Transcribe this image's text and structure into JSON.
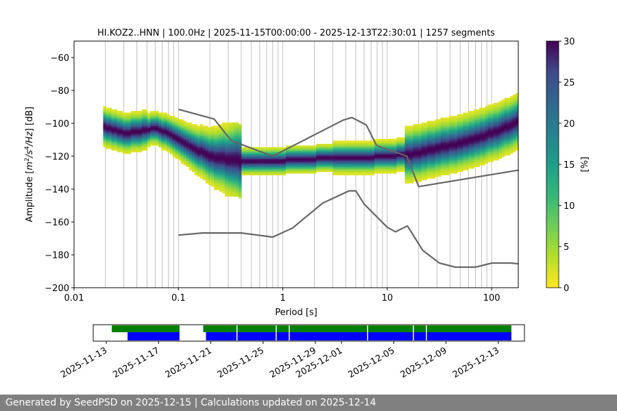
{
  "footer": {
    "text": "Generated by SeedPSD on 2025-12-15 | Calculations updated on 2025-12-14"
  },
  "chart_data": {
    "type": "heatmap",
    "title": "HI.KOZ2..HNN | 100.0Hz | 2025-11-15T00:00:00 - 2025-12-13T22:30:01 | 1257 segments",
    "xlabel": "Period [s]",
    "ylabel_parts": [
      "Amplitude [",
      "m",
      "2",
      "/",
      "s",
      "4",
      "/",
      "Hz",
      "] [dB]"
    ],
    "x_scale": "log",
    "xlim": [
      0.01,
      180
    ],
    "ylim": [
      -200,
      -50
    ],
    "x_ticks": [
      0.01,
      0.1,
      1,
      10,
      100
    ],
    "x_tick_labels": [
      "0.01",
      "0.1",
      "1",
      "10",
      "100"
    ],
    "y_ticks": [
      -200,
      -180,
      -160,
      -140,
      -120,
      -100,
      -80,
      -60
    ],
    "y_tick_labels": [
      "−200",
      "−180",
      "−160",
      "−140",
      "−120",
      "−100",
      "−80",
      "−60"
    ],
    "grid": "vertical at period bins",
    "grid_periods": [
      0.02,
      0.03,
      0.04,
      0.05,
      0.06,
      0.07,
      0.08,
      0.09,
      0.1,
      0.2,
      0.3,
      0.4,
      0.5,
      0.6,
      0.7,
      0.8,
      0.9,
      1,
      2,
      3,
      4,
      5,
      6,
      7,
      8,
      9,
      10,
      20,
      30,
      40,
      50,
      60,
      70,
      80,
      90,
      100
    ],
    "colorbar": {
      "label": "[%]",
      "range": [
        0,
        30
      ],
      "ticks": [
        0,
        5,
        10,
        15,
        20,
        25,
        30
      ],
      "colormap": "viridis_r"
    },
    "series": [
      {
        "role": "noise-model-high",
        "color": "#666666",
        "x": [
          0.1,
          0.22,
          0.32,
          0.8,
          3.8,
          4.6,
          6.3,
          7.9,
          15.4,
          20,
          180
        ],
        "y": [
          -91.5,
          -97.4,
          -110.5,
          -120,
          -98,
          -96.5,
          -101,
          -113.5,
          -120,
          -138.5,
          -128.5
        ]
      },
      {
        "role": "noise-model-low",
        "color": "#666666",
        "x": [
          0.1,
          0.17,
          0.4,
          0.8,
          1.24,
          2.4,
          4.3,
          5,
          6,
          10,
          12,
          15.6,
          21.9,
          31.6,
          45,
          70,
          101,
          154,
          180
        ],
        "y": [
          -168,
          -166.7,
          -166.7,
          -169.2,
          -163.7,
          -148.6,
          -141.1,
          -141.1,
          -149.1,
          -163.2,
          -166,
          -162.4,
          -177.3,
          -185,
          -187.5,
          -187.5,
          -185,
          -185,
          -185.5
        ]
      }
    ],
    "psd_mode": {
      "x": [
        0.019,
        0.025,
        0.03,
        0.04,
        0.06,
        0.08,
        0.1,
        0.15,
        0.2,
        0.3,
        0.5,
        0.8,
        1.5,
        3,
        6,
        10,
        15,
        20,
        30,
        50,
        80,
        120,
        180
      ],
      "y": [
        -102,
        -104,
        -106,
        -105,
        -103,
        -106,
        -110,
        -116,
        -120,
        -122,
        -123,
        -123,
        -122,
        -121,
        -121,
        -120,
        -119,
        -118,
        -115,
        -112,
        -108,
        -104,
        -99
      ]
    },
    "availability": {
      "x_ticks": [
        "2025-11-13",
        "2025-11-17",
        "2025-11-21",
        "2025-11-25",
        "2025-11-29",
        "2025-12-01",
        "2025-12-05",
        "2025-12-09",
        "2025-12-13"
      ],
      "range": [
        "2025-11-12",
        "2025-12-15"
      ],
      "green_color": "#008000",
      "blue_color": "#0000ff",
      "data_segments": [
        [
          "2025-11-13",
          "2025-11-18.6"
        ],
        [
          "2025-11-20",
          "2025-12-14"
        ]
      ],
      "psd_segments": [
        [
          "2025-11-14",
          "2025-11-18.6"
        ],
        [
          "2025-11-20",
          "2025-12-14"
        ]
      ],
      "psd_gaps": [
        "2025-11-23",
        "2025-11-26",
        "2025-11-27",
        "2025-12-03",
        "2025-12-06.5",
        "2025-12-07.5"
      ]
    }
  }
}
